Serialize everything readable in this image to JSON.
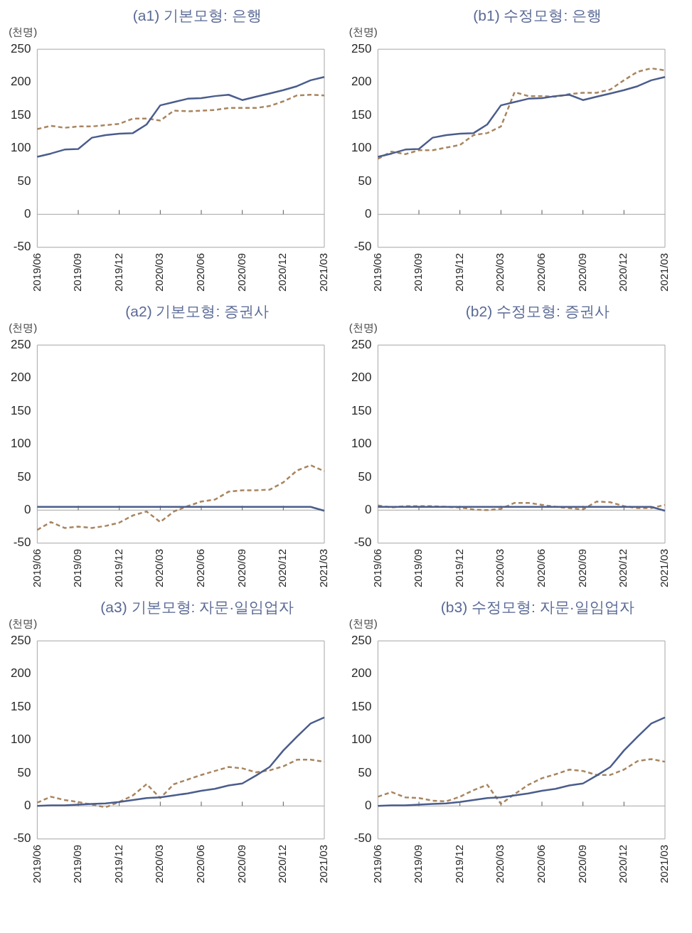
{
  "chart_data": [
    {
      "type": "line",
      "title": "(a1) 기본모형: 은행",
      "ylabel": "(천명)",
      "categories": [
        "2019/06",
        null,
        null,
        "2019/09",
        null,
        null,
        "2019/12",
        null,
        null,
        "2020/03",
        null,
        null,
        "2020/06",
        null,
        null,
        "2020/09",
        null,
        null,
        "2020/12",
        null,
        null,
        "2021/03"
      ],
      "ylim": [
        -50,
        250
      ],
      "yticks": [
        -50,
        0,
        50,
        100,
        150,
        200,
        250
      ],
      "grid": false,
      "legend": false,
      "ref_lines": [
        {
          "axis": "y",
          "value": 0,
          "color": "#a6a6a6"
        }
      ],
      "series": [
        {
          "color": "#4a5d8c",
          "line_style": "solid",
          "values": [
            87,
            92,
            98,
            99,
            116,
            120,
            122,
            123,
            136,
            165,
            170,
            175,
            176,
            179,
            181,
            173,
            178,
            183,
            188,
            194,
            203,
            208
          ]
        },
        {
          "color": "#a88560",
          "line_style": "dashed",
          "values": [
            129,
            134,
            131,
            133,
            133,
            135,
            137,
            145,
            145,
            142,
            157,
            156,
            157,
            158,
            161,
            161,
            161,
            164,
            171,
            180,
            181,
            180
          ]
        }
      ]
    },
    {
      "type": "line",
      "title": "(b1) 수정모형: 은행",
      "ylabel": "(천명)",
      "categories": [
        "2019/06",
        null,
        null,
        "2019/09",
        null,
        null,
        "2019/12",
        null,
        null,
        "2020/03",
        null,
        null,
        "2020/06",
        null,
        null,
        "2020/09",
        null,
        null,
        "2020/12",
        null,
        null,
        "2021/03"
      ],
      "ylim": [
        -50,
        250
      ],
      "yticks": [
        -50,
        0,
        50,
        100,
        150,
        200,
        250
      ],
      "grid": false,
      "legend": false,
      "ref_lines": [
        {
          "axis": "y",
          "value": 0,
          "color": "#a6a6a6"
        }
      ],
      "series": [
        {
          "color": "#4a5d8c",
          "line_style": "solid",
          "values": [
            87,
            92,
            98,
            99,
            116,
            120,
            122,
            123,
            136,
            165,
            170,
            175,
            176,
            179,
            181,
            173,
            178,
            183,
            188,
            194,
            203,
            208
          ]
        },
        {
          "color": "#a88560",
          "line_style": "dashed",
          "values": [
            84,
            95,
            91,
            97,
            97,
            101,
            105,
            120,
            123,
            133,
            185,
            179,
            179,
            178,
            182,
            184,
            184,
            189,
            203,
            216,
            221,
            218
          ]
        }
      ]
    },
    {
      "type": "line",
      "title": "(a2) 기본모형: 증권사",
      "ylabel": "(천명)",
      "categories": [
        "2019/06",
        null,
        null,
        "2019/09",
        null,
        null,
        "2019/12",
        null,
        null,
        "2020/03",
        null,
        null,
        "2020/06",
        null,
        null,
        "2020/09",
        null,
        null,
        "2020/12",
        null,
        null,
        "2021/03"
      ],
      "ylim": [
        -50,
        250
      ],
      "yticks": [
        -50,
        0,
        50,
        100,
        150,
        200,
        250
      ],
      "grid": false,
      "legend": false,
      "ref_lines": [
        {
          "axis": "y",
          "value": 0,
          "color": "#a6a6a6"
        }
      ],
      "series": [
        {
          "color": "#4a5d8c",
          "line_style": "solid",
          "values": [
            5,
            5,
            5,
            5,
            5,
            5,
            5,
            5,
            5,
            5,
            5,
            5,
            5,
            5,
            5,
            5,
            5,
            5,
            5,
            5,
            5,
            -1
          ]
        },
        {
          "color": "#a88560",
          "line_style": "dashed",
          "values": [
            -30,
            -18,
            -27,
            -25,
            -27,
            -24,
            -19,
            -8,
            -2,
            -18,
            -2,
            6,
            13,
            16,
            28,
            30,
            30,
            31,
            42,
            60,
            68,
            59
          ]
        }
      ]
    },
    {
      "type": "line",
      "title": "(b2) 수정모형: 증권사",
      "ylabel": "(천명)",
      "categories": [
        "2019/06",
        null,
        null,
        "2019/09",
        null,
        null,
        "2019/12",
        null,
        null,
        "2020/03",
        null,
        null,
        "2020/06",
        null,
        null,
        "2020/09",
        null,
        null,
        "2020/12",
        null,
        null,
        "2021/03"
      ],
      "ylim": [
        -50,
        250
      ],
      "yticks": [
        -50,
        0,
        50,
        100,
        150,
        200,
        250
      ],
      "grid": false,
      "legend": false,
      "ref_lines": [
        {
          "axis": "y",
          "value": 0,
          "color": "#a6a6a6"
        }
      ],
      "series": [
        {
          "color": "#4a5d8c",
          "line_style": "solid",
          "values": [
            5,
            5,
            5,
            5,
            5,
            5,
            5,
            5,
            5,
            5,
            5,
            5,
            5,
            5,
            5,
            5,
            5,
            5,
            5,
            5,
            5,
            -1
          ]
        },
        {
          "color": "#a88560",
          "line_style": "dashed",
          "values": [
            7,
            4,
            6,
            6,
            6,
            5,
            4,
            1,
            0,
            2,
            11,
            11,
            8,
            5,
            3,
            1,
            13,
            12,
            6,
            3,
            3,
            8
          ]
        }
      ]
    },
    {
      "type": "line",
      "title": "(a3) 기본모형: 자문·일임업자",
      "ylabel": "(천명)",
      "categories": [
        "2019/06",
        null,
        null,
        "2019/09",
        null,
        null,
        "2019/12",
        null,
        null,
        "2020/03",
        null,
        null,
        "2020/06",
        null,
        null,
        "2020/09",
        null,
        null,
        "2020/12",
        null,
        null,
        "2021/03"
      ],
      "ylim": [
        -50,
        250
      ],
      "yticks": [
        -50,
        0,
        50,
        100,
        150,
        200,
        250
      ],
      "grid": false,
      "legend": false,
      "ref_lines": [
        {
          "axis": "y",
          "value": 0,
          "color": "#a6a6a6"
        }
      ],
      "series": [
        {
          "color": "#4a5d8c",
          "line_style": "solid",
          "values": [
            0,
            1,
            1,
            2,
            3,
            4,
            6,
            9,
            12,
            13,
            16,
            19,
            23,
            26,
            31,
            34,
            46,
            59,
            84,
            105,
            125,
            134
          ]
        },
        {
          "color": "#a88560",
          "line_style": "dashed",
          "values": [
            5,
            14,
            9,
            6,
            2,
            -2,
            6,
            16,
            33,
            12,
            33,
            40,
            47,
            53,
            59,
            57,
            51,
            54,
            60,
            70,
            70,
            67
          ]
        }
      ]
    },
    {
      "type": "line",
      "title": "(b3) 수정모형: 자문·일임업자",
      "ylabel": "(천명)",
      "categories": [
        "2019/06",
        null,
        null,
        "2019/09",
        null,
        null,
        "2019/12",
        null,
        null,
        "2020/03",
        null,
        null,
        "2020/06",
        null,
        null,
        "2020/09",
        null,
        null,
        "2020/12",
        null,
        null,
        "2021/03"
      ],
      "ylim": [
        -50,
        250
      ],
      "yticks": [
        -50,
        0,
        50,
        100,
        150,
        200,
        250
      ],
      "grid": false,
      "legend": false,
      "ref_lines": [
        {
          "axis": "y",
          "value": 0,
          "color": "#a6a6a6"
        }
      ],
      "series": [
        {
          "color": "#4a5d8c",
          "line_style": "solid",
          "values": [
            0,
            1,
            1,
            2,
            3,
            4,
            6,
            9,
            12,
            13,
            16,
            19,
            23,
            26,
            31,
            34,
            46,
            59,
            84,
            105,
            125,
            134
          ]
        },
        {
          "color": "#a88560",
          "line_style": "dashed",
          "values": [
            14,
            21,
            13,
            12,
            8,
            7,
            14,
            24,
            32,
            3,
            18,
            32,
            42,
            48,
            55,
            53,
            47,
            47,
            55,
            68,
            71,
            67
          ]
        }
      ]
    }
  ]
}
